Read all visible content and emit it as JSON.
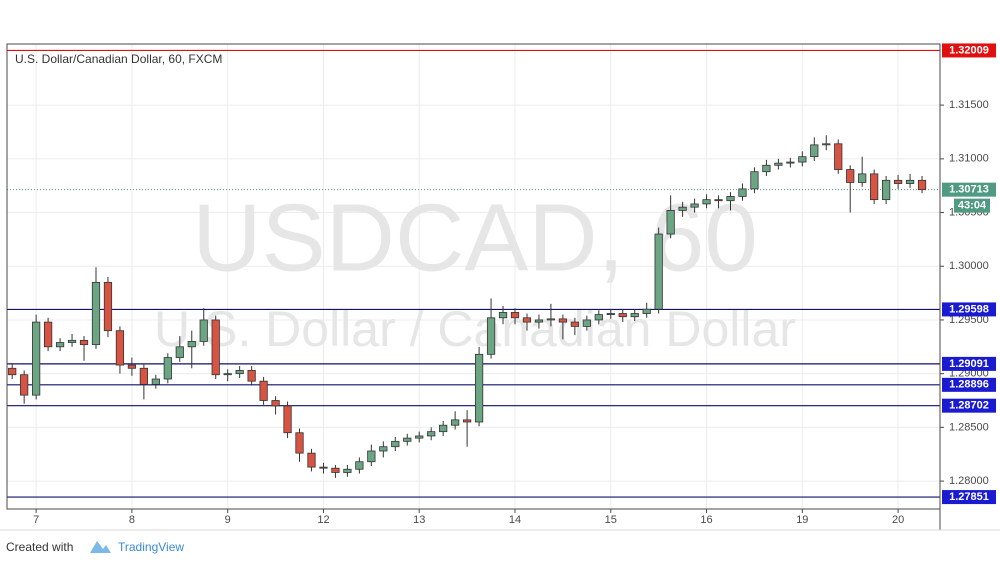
{
  "chart_data": {
    "type": "candlestick",
    "title": "U.S. Dollar/Canadian Dollar, 60, FXCM",
    "watermark": "USDCAD, 60",
    "watermark_subtitle": "U.S. Dollar / Canadian Dollar",
    "up_color": "#6ba583",
    "down_color": "#d75442",
    "grid": true,
    "x": [
      -6,
      -3,
      0,
      3,
      6,
      9,
      12,
      15,
      18,
      21,
      24,
      27,
      30,
      33,
      36,
      39,
      42,
      45,
      48,
      51,
      54,
      57,
      60,
      63,
      66,
      69,
      72,
      75,
      78,
      81,
      84,
      87,
      90,
      93,
      96,
      99,
      102,
      105,
      108,
      111,
      114,
      117,
      120,
      123,
      126,
      129,
      132,
      135,
      138,
      141,
      144,
      147,
      150,
      153,
      156,
      159,
      162,
      165,
      168,
      171,
      174,
      177,
      180,
      183,
      186,
      189,
      192,
      195,
      198,
      201,
      204,
      207,
      210,
      213,
      216,
      219,
      222
    ],
    "open": [
      1.2905,
      1.2899,
      1.288,
      1.2948,
      1.2925,
      1.2929,
      1.2931,
      1.2927,
      1.2985,
      1.294,
      1.2908,
      1.2905,
      1.289,
      1.2895,
      1.2915,
      1.2925,
      1.293,
      1.295,
      1.2899,
      1.29,
      1.2903,
      1.2893,
      1.2875,
      1.287,
      1.2845,
      1.2826,
      1.2813,
      1.2812,
      1.2808,
      1.2811,
      1.2818,
      1.2828,
      1.2832,
      1.2837,
      1.284,
      1.2842,
      1.2846,
      1.2852,
      1.2857,
      1.2855,
      1.2918,
      1.2952,
      1.2957,
      1.2952,
      1.2948,
      1.295,
      1.2951,
      1.2948,
      1.2944,
      1.295,
      1.2955,
      1.2956,
      1.2953,
      1.2956,
      1.296,
      1.303,
      1.3052,
      1.3055,
      1.3058,
      1.3062,
      1.3061,
      1.3065,
      1.3072,
      1.3088,
      1.3094,
      1.3096,
      1.3097,
      1.3102,
      1.3113,
      1.3114,
      1.309,
      1.3078,
      1.3086,
      1.3062,
      1.308,
      1.3077,
      1.308
    ],
    "high": [
      1.2909,
      1.2903,
      1.2955,
      1.2952,
      1.2933,
      1.2937,
      1.2935,
      1.2999,
      1.299,
      1.2944,
      1.2915,
      1.2909,
      1.2899,
      1.2919,
      1.2935,
      1.294,
      1.2961,
      1.2954,
      1.2904,
      1.2907,
      1.2907,
      1.2897,
      1.2879,
      1.2874,
      1.2849,
      1.283,
      1.2817,
      1.2815,
      1.2815,
      1.2822,
      1.2834,
      1.2837,
      1.2841,
      1.2844,
      1.2846,
      1.285,
      1.2856,
      1.2865,
      1.2866,
      1.2925,
      1.297,
      1.2963,
      1.2961,
      1.2956,
      1.2955,
      1.2965,
      1.2955,
      1.2952,
      1.2954,
      1.2959,
      1.296,
      1.296,
      1.296,
      1.2966,
      1.3036,
      1.3066,
      1.306,
      1.3063,
      1.3067,
      1.3066,
      1.3069,
      1.3077,
      1.3092,
      1.3099,
      1.31,
      1.3101,
      1.3107,
      1.312,
      1.3122,
      1.3118,
      1.3094,
      1.3102,
      1.309,
      1.3084,
      1.3085,
      1.3086,
      1.3084
    ],
    "low": [
      1.2895,
      1.2872,
      1.2876,
      1.2921,
      1.2921,
      1.2925,
      1.2912,
      1.2923,
      1.2934,
      1.29,
      1.2898,
      1.2876,
      1.2886,
      1.2891,
      1.2911,
      1.2905,
      1.2926,
      1.2895,
      1.2893,
      1.2896,
      1.2889,
      1.2871,
      1.2862,
      1.284,
      1.2818,
      1.2809,
      1.2807,
      1.2803,
      1.2804,
      1.2807,
      1.2814,
      1.2822,
      1.2828,
      1.2833,
      1.2836,
      1.2838,
      1.2842,
      1.2848,
      1.2832,
      1.2851,
      1.2914,
      1.2946,
      1.2946,
      1.294,
      1.2942,
      1.2944,
      1.2932,
      1.2936,
      1.294,
      1.2946,
      1.2951,
      1.2948,
      1.2949,
      1.2952,
      1.2956,
      1.3026,
      1.3046,
      1.305,
      1.3054,
      1.3054,
      1.3052,
      1.3061,
      1.3068,
      1.3084,
      1.309,
      1.3092,
      1.3093,
      1.3098,
      1.3108,
      1.3086,
      1.305,
      1.3074,
      1.3058,
      1.3058,
      1.3072,
      1.3073,
      1.3068
    ],
    "close": [
      1.2899,
      1.288,
      1.2948,
      1.2925,
      1.2929,
      1.2931,
      1.2927,
      1.2985,
      1.294,
      1.2908,
      1.2905,
      1.289,
      1.2895,
      1.2915,
      1.2925,
      1.293,
      1.295,
      1.2899,
      1.29,
      1.2903,
      1.2893,
      1.2875,
      1.287,
      1.2845,
      1.2826,
      1.2813,
      1.2812,
      1.2808,
      1.2811,
      1.2818,
      1.2828,
      1.2832,
      1.2837,
      1.284,
      1.2842,
      1.2846,
      1.2852,
      1.2857,
      1.2855,
      1.2918,
      1.2952,
      1.2957,
      1.2952,
      1.2948,
      1.295,
      1.2951,
      1.2948,
      1.2944,
      1.295,
      1.2955,
      1.2956,
      1.2953,
      1.2956,
      1.296,
      1.303,
      1.3052,
      1.3055,
      1.3058,
      1.3062,
      1.3061,
      1.3065,
      1.3072,
      1.3088,
      1.3094,
      1.3096,
      1.3097,
      1.3102,
      1.3113,
      1.3114,
      1.309,
      1.3078,
      1.3086,
      1.3062,
      1.308,
      1.3077,
      1.308,
      1.30713
    ],
    "xlim": [
      -7.3,
      226.5
    ],
    "ylim": [
      1.2774,
      1.32069
    ],
    "xticks": [
      {
        "value": 0,
        "label": "7"
      },
      {
        "value": 24,
        "label": "8"
      },
      {
        "value": 48,
        "label": "9"
      },
      {
        "value": 72,
        "label": "12"
      },
      {
        "value": 96,
        "label": "13"
      },
      {
        "value": 120,
        "label": "14"
      },
      {
        "value": 144,
        "label": "15"
      },
      {
        "value": 168,
        "label": "16"
      },
      {
        "value": 192,
        "label": "19"
      },
      {
        "value": 216,
        "label": "20"
      }
    ],
    "yticks": [
      {
        "value": 1.28,
        "label": "1.28000"
      },
      {
        "value": 1.285,
        "label": "1.28500"
      },
      {
        "value": 1.29,
        "label": "1.29000"
      },
      {
        "value": 1.295,
        "label": "1.29500"
      },
      {
        "value": 1.3,
        "label": "1.30000"
      },
      {
        "value": 1.305,
        "label": "1.30500"
      },
      {
        "value": 1.31,
        "label": "1.31000"
      },
      {
        "value": 1.315,
        "label": "1.31500"
      }
    ],
    "levels": [
      {
        "value": 1.32009,
        "color": "#e01010"
      },
      {
        "value": 1.29598,
        "color": "#10106e"
      },
      {
        "value": 1.29091,
        "color": "#10106e"
      },
      {
        "value": 1.28896,
        "color": "#10106e"
      },
      {
        "value": 1.28702,
        "color": "#10106e"
      },
      {
        "value": 1.27851,
        "color": "#10106e"
      }
    ],
    "level_label_colors": [
      "#e01010",
      "#1a1ad0",
      "#1a1ad0",
      "#1a1ad0",
      "#1a1ad0",
      "#1a1ad0"
    ],
    "last_price_color": "#4f9a80",
    "countdown": "43:04"
  },
  "footer": {
    "text": "Created with",
    "brand": "TradingView"
  }
}
